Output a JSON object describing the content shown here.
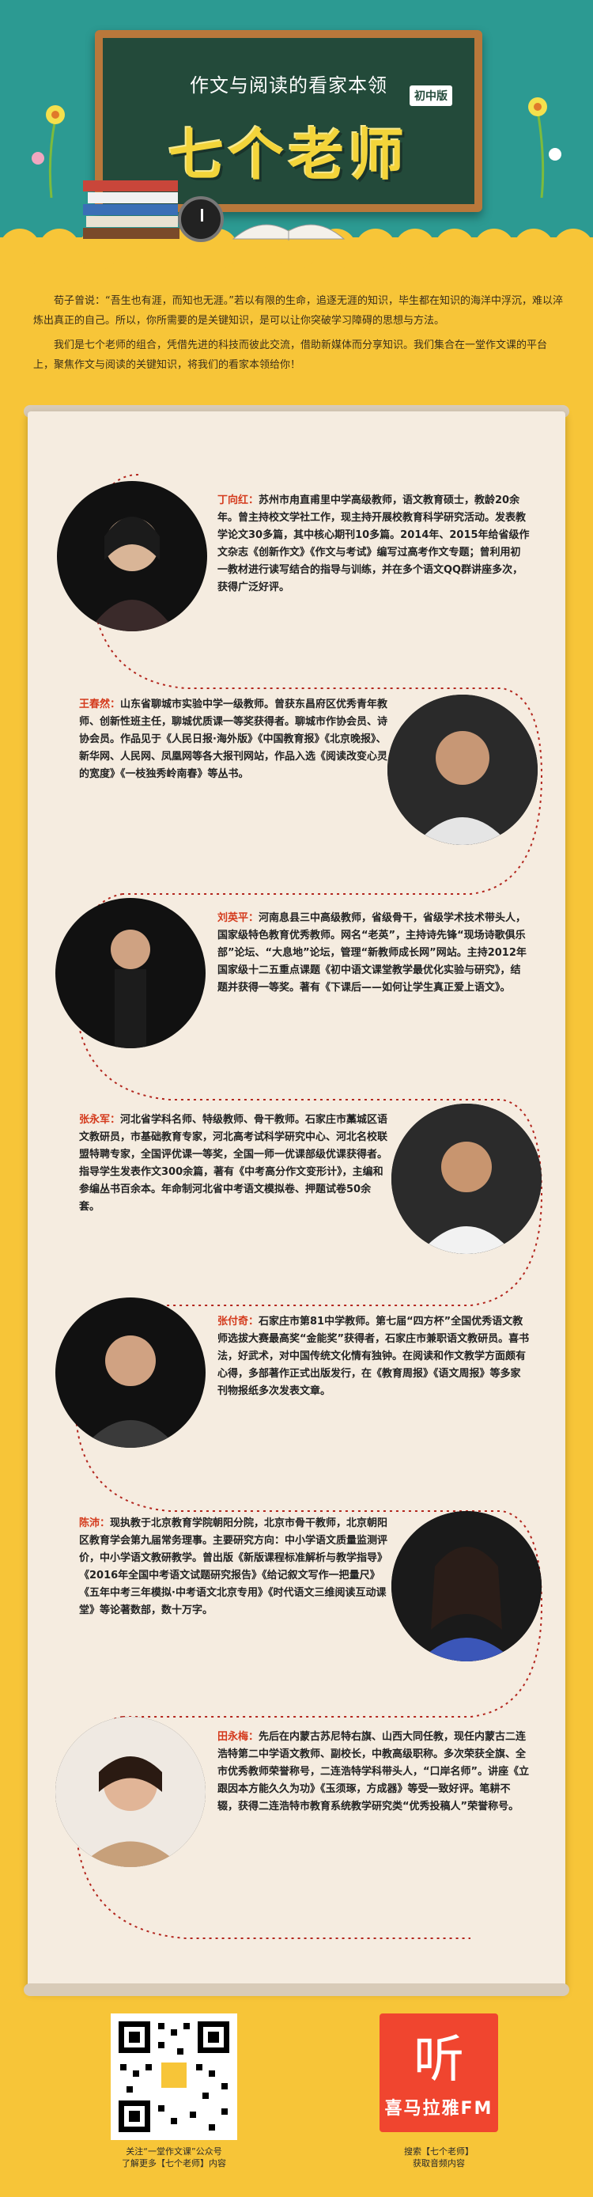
{
  "header": {
    "subtitle": "作文与阅读的看家本领",
    "title": "七个老师",
    "edition": "初中版"
  },
  "intro": {
    "paragraph1": "荀子曾说：“吾生也有涯，而知也无涯。”若以有限的生命，追逐无涯的知识，毕生都在知识的海洋中浮沉，难以淬炼出真正的自己。所以，你所需要的是关键知识，是可以让你突破学习障碍的思想与方法。",
    "paragraph2": "我们是七个老师的组合，凭借先进的科技而彼此交流，借助新媒体而分享知识。我们集合在一堂作文课的平台上，聚焦作文与阅读的关键知识，将我们的看家本领给你！"
  },
  "teachers": [
    {
      "name": "丁向红：",
      "bio": "苏州市甪直甫里中学高级教师，语文教育硕士，教龄20余年。曾主持校文学社工作，现主持开展校教育科学研究活动。发表教学论文30多篇，其中核心期刊10多篇。2014年、2015年给省级作文杂志《创新作文》《作文与考试》编写过高考作文专题；曾利用初一教材进行读写结合的指导与训练，并在多个语文QQ群讲座多次，获得广泛好评。"
    },
    {
      "name": "王春然：",
      "bio": "山东省聊城市实验中学一级教师。曾获东昌府区优秀青年教师、创新性班主任，聊城优质课一等奖获得者。聊城市作协会员、诗协会员。作品见于《人民日报·海外版》《中国教育报》《北京晚报》、新华网、人民网、凤凰网等各大报刊网站，作品入选《阅读改变心灵的宽度》《一枝独秀岭南春》等丛书。"
    },
    {
      "name": "刘英平：",
      "bio": "河南息县三中高级教师，省级骨干，省级学术技术带头人，国家级特色教育优秀教师。网名“老英”，主持诗先锋“现场诗歌俱乐部”论坛、“大息地”论坛，管理“新教师成长网”网站。主持2012年国家级十二五重点课题《初中语文课堂教学最优化实验与研究》，结题并获得一等奖。著有《下课后——如何让学生真正爱上语文》。"
    },
    {
      "name": "张永军：",
      "bio": "河北省学科名师、特级教师、骨干教师。石家庄市藁城区语文教研员，市基础教育专家，河北高考试科学研究中心、河北名校联盟特聘专家，全国评优课一等奖，全国一师一优课部级优课获得者。指导学生发表作文300余篇，著有《中考高分作文变形计》，主编和参编丛书百余本。年命制河北省中考语文模拟卷、押题试卷50余套。"
    },
    {
      "name": "张付奇：",
      "bio": "石家庄市第81中学教师。第七届“四方杯”全国优秀语文教师选拔大赛最高奖“金能奖”获得者，石家庄市兼职语文教研员。喜书法，好武术，对中国传统文化情有独钟。在阅读和作文教学方面颇有心得，多部著作正式出版发行，在《教育周报》《语文周报》等多家刊物报纸多次发表文章。"
    },
    {
      "name": "陈沛：",
      "bio": "现执教于北京教育学院朝阳分院，北京市骨干教师，北京朝阳区教育学会第九届常务理事。主要研究方向：中小学语文质量监测评价，中小学语文教研教学。曾出版《新版课程标准解析与教学指导》《2016年全国中考语文试题研究报告》《给记叙文写作一把量尺》《五年中考三年模拟·中考语文北京专用》《时代语文三维阅读互动课堂》等论著数部，数十万字。"
    },
    {
      "name": "田永梅：",
      "bio": "先后在内蒙古苏尼特右旗、山西大同任教，现任内蒙古二连浩特第二中学语文教师、副校长，中教高级职称。多次荣获全旗、全市优秀教师荣誉称号，二连浩特学科带头人，“口岸名师”。讲座《立跟因本方能久久为功》《玉须琢，方成器》等受一致好评。笔耕不辍，获得二连浩特市教育系统教学研究类“优秀投稿人”荣誉称号。"
    }
  ],
  "footer": {
    "qr_caption_line1": "关注“一堂作文课”公众号",
    "qr_caption_line2": "了解更多【七个老师】内容",
    "fm_brand": "喜马拉雅FM",
    "fm_caption_line1": "搜索【七个老师】",
    "fm_caption_line2": "获取音频内容"
  },
  "colors": {
    "teal": "#2c9a92",
    "yellow": "#f7c538",
    "name_red": "#d43a1c",
    "ximalaya_red": "#f0452f"
  }
}
